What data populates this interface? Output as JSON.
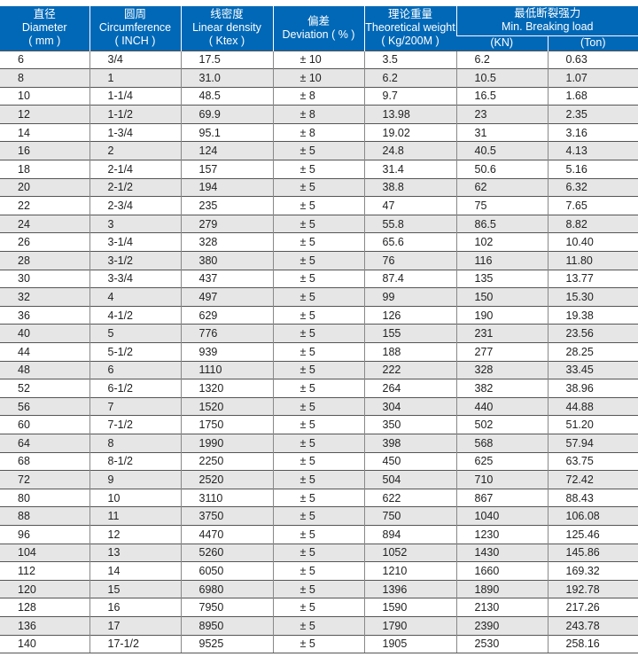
{
  "header": {
    "diameter": {
      "zh": "直径",
      "en": "Diameter",
      "unit": "( mm )"
    },
    "circumference": {
      "zh": "圆周",
      "en": "Circumference",
      "unit": "( INCH )"
    },
    "linear_density": {
      "zh": "线密度",
      "en": "Linear density",
      "unit": "( Ktex )"
    },
    "deviation": {
      "zh": "偏差",
      "en": "Deviation ( % )"
    },
    "weight": {
      "zh": "理论重量",
      "en": "Theoretical weight",
      "unit": "( Kg/200M )"
    },
    "breaking": {
      "zh": "最低断裂强力",
      "en": "Min. Breaking load",
      "kn": "(KN)",
      "ton": "(Ton)"
    }
  },
  "rows": [
    [
      "6",
      "3/4",
      "17.5",
      "± 10",
      "3.5",
      "6.2",
      "0.63"
    ],
    [
      "8",
      "1",
      "31.0",
      "± 10",
      "6.2",
      "10.5",
      "1.07"
    ],
    [
      "10",
      "1-1/4",
      "48.5",
      "± 8",
      "9.7",
      "16.5",
      "1.68"
    ],
    [
      "12",
      "1-1/2",
      "69.9",
      "± 8",
      "13.98",
      "23",
      "2.35"
    ],
    [
      "14",
      "1-3/4",
      "95.1",
      "± 8",
      "19.02",
      "31",
      "3.16"
    ],
    [
      "16",
      "2",
      "124",
      "± 5",
      "24.8",
      "40.5",
      "4.13"
    ],
    [
      "18",
      "2-1/4",
      "157",
      "± 5",
      "31.4",
      "50.6",
      "5.16"
    ],
    [
      "20",
      "2-1/2",
      "194",
      "± 5",
      "38.8",
      "62",
      "6.32"
    ],
    [
      "22",
      "2-3/4",
      "235",
      "± 5",
      "47",
      "75",
      "7.65"
    ],
    [
      "24",
      "3",
      "279",
      "± 5",
      "55.8",
      "86.5",
      "8.82"
    ],
    [
      "26",
      "3-1/4",
      "328",
      "± 5",
      "65.6",
      "102",
      "10.40"
    ],
    [
      "28",
      "3-1/2",
      "380",
      "± 5",
      "76",
      "116",
      "11.80"
    ],
    [
      "30",
      "3-3/4",
      "437",
      "± 5",
      "87.4",
      "135",
      "13.77"
    ],
    [
      "32",
      "4",
      "497",
      "± 5",
      "99",
      "150",
      "15.30"
    ],
    [
      "36",
      "4-1/2",
      "629",
      "± 5",
      "126",
      "190",
      "19.38"
    ],
    [
      "40",
      "5",
      "776",
      "± 5",
      "155",
      "231",
      "23.56"
    ],
    [
      "44",
      "5-1/2",
      "939",
      "± 5",
      "188",
      "277",
      "28.25"
    ],
    [
      "48",
      "6",
      "1110",
      "± 5",
      "222",
      "328",
      "33.45"
    ],
    [
      "52",
      "6-1/2",
      "1320",
      "± 5",
      "264",
      "382",
      "38.96"
    ],
    [
      "56",
      "7",
      "1520",
      "± 5",
      "304",
      "440",
      "44.88"
    ],
    [
      "60",
      "7-1/2",
      "1750",
      "± 5",
      "350",
      "502",
      "51.20"
    ],
    [
      "64",
      "8",
      "1990",
      "± 5",
      "398",
      "568",
      "57.94"
    ],
    [
      "68",
      "8-1/2",
      "2250",
      "± 5",
      "450",
      "625",
      "63.75"
    ],
    [
      "72",
      "9",
      "2520",
      "± 5",
      "504",
      "710",
      "72.42"
    ],
    [
      "80",
      "10",
      "3110",
      "± 5",
      "622",
      "867",
      "88.43"
    ],
    [
      "88",
      "11",
      "3750",
      "± 5",
      "750",
      "1040",
      "106.08"
    ],
    [
      "96",
      "12",
      "4470",
      "± 5",
      "894",
      "1230",
      "125.46"
    ],
    [
      "104",
      "13",
      "5260",
      "± 5",
      "1052",
      "1430",
      "145.86"
    ],
    [
      "112",
      "14",
      "6050",
      "± 5",
      "1210",
      "1660",
      "169.32"
    ],
    [
      "120",
      "15",
      "6980",
      "± 5",
      "1396",
      "1890",
      "192.78"
    ],
    [
      "128",
      "16",
      "7950",
      "± 5",
      "1590",
      "2130",
      "217.26"
    ],
    [
      "136",
      "17",
      "8950",
      "± 5",
      "1790",
      "2390",
      "243.78"
    ],
    [
      "140",
      "17-1/2",
      "9525",
      "± 5",
      "1905",
      "2530",
      "258.16"
    ]
  ]
}
